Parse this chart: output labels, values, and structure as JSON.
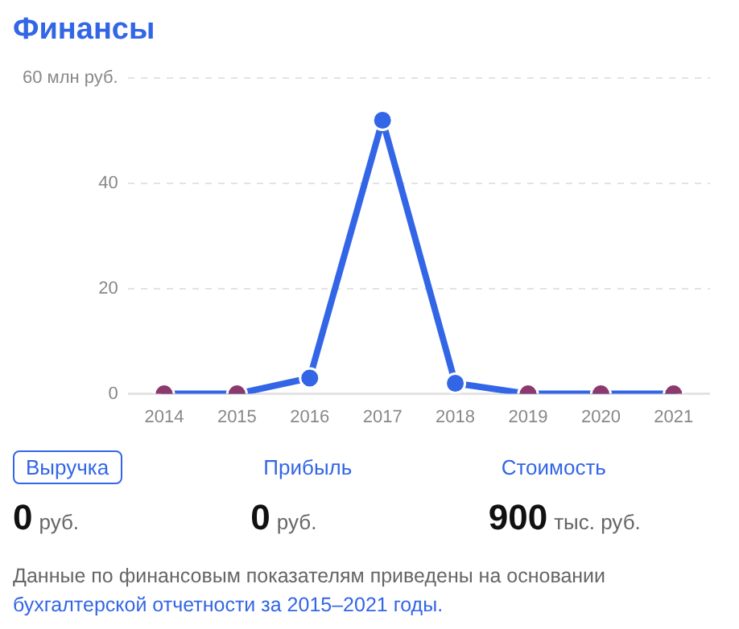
{
  "chart_data": [
    {
      "type": "line",
      "title": "Финансы",
      "categories": [
        "2014",
        "2015",
        "2016",
        "2017",
        "2018",
        "2019",
        "2020",
        "2021"
      ],
      "series": [
        {
          "values": [
            0,
            0,
            3,
            52,
            2,
            0,
            0,
            0
          ],
          "color": "#3366e6",
          "colors": [
            "#8c3a6e",
            "#8c3a6e",
            "#3366e6",
            "#3366e6",
            "#3366e6",
            "#8c3a6e",
            "#8c3a6e",
            "#8c3a6e"
          ]
        }
      ],
      "ylim": [
        0,
        60
      ],
      "yticks": [
        0,
        20,
        40,
        {
          "value": 60,
          "label": "60 млн руб."
        }
      ],
      "grid": "y",
      "marker": "circle",
      "line_style": "solid"
    },
    {
      "type": "other",
      "annotations": [
        "Выручка",
        "0",
        "руб.",
        "Прибыль",
        "0",
        "руб.",
        "Стоимость",
        "900",
        "тыс. руб.",
        "Данные по финансовым показателям приведены на основании",
        "бухгалтерской отчетности за 2015–2021 годы."
      ]
    }
  ]
}
